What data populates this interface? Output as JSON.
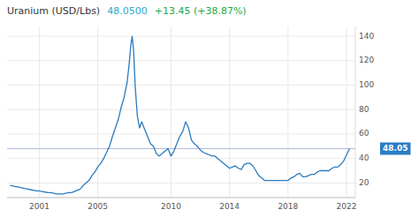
{
  "chart_data": {
    "type": "line",
    "title": "Uranium (USD/Lbs)",
    "annotations": [
      {
        "text": "48.0500",
        "color": "#29a8cc"
      },
      {
        "text": "+13.45 (+38.87%)",
        "color": "#22aa44"
      },
      {
        "text": "48.05",
        "value": 48.05,
        "color": "#2a7dc4",
        "line_color": "#b0b8e0"
      }
    ],
    "color": "#2b7bbf",
    "grid": true,
    "xlim": [
      1998.8,
      2022.6
    ],
    "xticks": [
      2001,
      2005,
      2010,
      2014,
      2018,
      2022
    ],
    "ylim": [
      8,
      148
    ],
    "yticks": [
      20,
      40,
      60,
      80,
      100,
      120,
      140
    ],
    "x": [
      1999.0,
      1999.2,
      1999.4,
      1999.6,
      1999.8,
      2000.0,
      2000.2,
      2000.4,
      2000.6,
      2000.8,
      2001.0,
      2001.2,
      2001.4,
      2001.6,
      2001.8,
      2002.0,
      2002.2,
      2002.4,
      2002.6,
      2002.8,
      2003.0,
      2003.2,
      2003.4,
      2003.6,
      2003.8,
      2004.0,
      2004.2,
      2004.4,
      2004.6,
      2004.8,
      2005.0,
      2005.2,
      2005.4,
      2005.6,
      2005.8,
      2006.0,
      2006.2,
      2006.4,
      2006.6,
      2006.8,
      2007.0,
      2007.15,
      2007.25,
      2007.35,
      2007.45,
      2007.55,
      2007.7,
      2007.85,
      2008.0,
      2008.2,
      2008.4,
      2008.6,
      2008.8,
      2009.0,
      2009.2,
      2009.4,
      2009.6,
      2009.8,
      2010.0,
      2010.2,
      2010.4,
      2010.6,
      2010.8,
      2011.0,
      2011.2,
      2011.4,
      2011.6,
      2011.8,
      2012.0,
      2012.2,
      2012.4,
      2012.6,
      2012.8,
      2013.0,
      2013.2,
      2013.4,
      2013.6,
      2013.8,
      2014.0,
      2014.2,
      2014.4,
      2014.6,
      2014.8,
      2015.0,
      2015.2,
      2015.4,
      2015.6,
      2015.8,
      2016.0,
      2016.2,
      2016.4,
      2016.6,
      2016.8,
      2017.0,
      2017.2,
      2017.4,
      2017.6,
      2017.8,
      2018.0,
      2018.2,
      2018.4,
      2018.6,
      2018.8,
      2019.0,
      2019.2,
      2019.4,
      2019.6,
      2019.8,
      2020.0,
      2020.2,
      2020.4,
      2020.6,
      2020.8,
      2021.0,
      2021.2,
      2021.4,
      2021.6,
      2021.8,
      2022.0,
      2022.2
    ],
    "values": [
      18,
      17.5,
      17,
      16.5,
      16,
      15.5,
      15,
      14.5,
      14,
      13.5,
      13.5,
      13,
      12.5,
      12,
      12,
      11.5,
      11,
      11,
      11,
      11.5,
      12,
      12,
      13,
      14,
      15,
      18,
      20,
      22,
      26,
      29,
      33,
      36,
      40,
      45,
      50,
      58,
      65,
      72,
      82,
      90,
      102,
      118,
      132,
      140,
      128,
      100,
      75,
      65,
      70,
      64,
      58,
      52,
      50,
      44,
      42,
      44,
      46,
      48,
      42,
      46,
      52,
      58,
      62,
      70,
      65,
      55,
      52,
      50,
      47,
      45,
      44,
      43,
      42,
      42,
      40,
      38,
      36,
      34,
      32,
      33,
      34,
      32,
      31,
      35,
      36,
      36,
      34,
      30,
      26,
      24,
      22,
      22,
      22,
      22,
      22,
      22,
      22,
      22,
      22,
      24,
      25,
      27,
      28,
      25,
      25,
      26,
      27,
      27,
      29,
      30,
      30,
      30,
      30,
      32,
      33,
      33,
      35,
      38,
      43,
      48
    ]
  }
}
